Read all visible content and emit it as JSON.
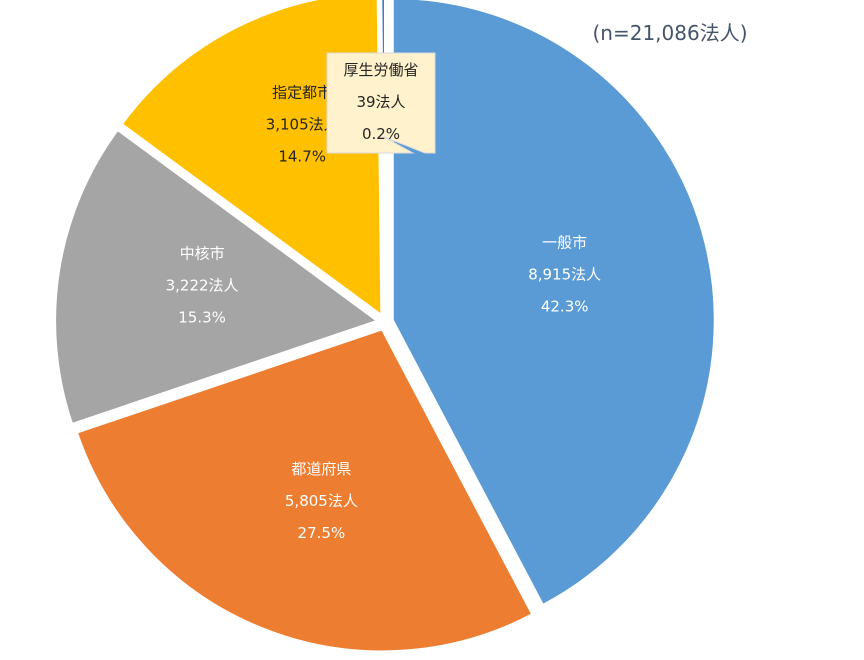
{
  "chart_data": {
    "type": "pie",
    "title": "",
    "total_label": "(n=21,086法人)",
    "slices": [
      {
        "name": "一般市",
        "count_label": "8,915法人",
        "percent_label": "42.3%",
        "value": 8915,
        "color": "#5b9bd5",
        "text_color": "#ffffff"
      },
      {
        "name": "都道府県",
        "count_label": "5,805法人",
        "percent_label": "27.5%",
        "value": 5805,
        "color": "#ed7d31",
        "text_color": "#ffffff"
      },
      {
        "name": "中核市",
        "count_label": "3,222法人",
        "percent_label": "15.3%",
        "value": 3222,
        "color": "#a5a5a5",
        "text_color": "#ffffff"
      },
      {
        "name": "指定都市",
        "count_label": "3,105法人",
        "percent_label": "14.7%",
        "value": 3105,
        "color": "#ffc000",
        "text_color": "#262626"
      },
      {
        "name": "厚生労働省",
        "count_label": "39法人",
        "percent_label": "0.2%",
        "value": 39,
        "color": "#4472c4",
        "text_color": "#262626",
        "callout": true,
        "callout_fill": "#fff2cc"
      }
    ]
  }
}
